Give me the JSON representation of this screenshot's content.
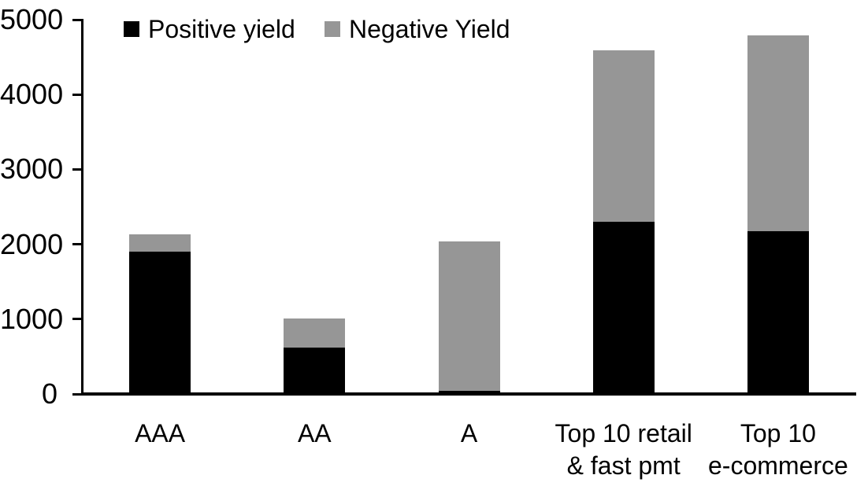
{
  "chart_data": {
    "type": "bar",
    "stacked": true,
    "title": "",
    "xlabel": "",
    "ylabel": "",
    "ylim": [
      0,
      5000
    ],
    "yticks": [
      0,
      1000,
      2000,
      3000,
      4000,
      5000
    ],
    "grid": false,
    "legend_position": "top-left",
    "background_color": "#ffffff",
    "axis_color": "#000000",
    "categories": [
      "AAA",
      "AA",
      "A",
      "Top 10 retail & fast pmt",
      "Top 10 e-commerce"
    ],
    "category_lines": [
      [
        "AAA"
      ],
      [
        "AA"
      ],
      [
        "A"
      ],
      [
        "Top 10 retail",
        "& fast pmt"
      ],
      [
        "Top 10",
        "e-commerce"
      ]
    ],
    "series": [
      {
        "name": "Positive yield",
        "color": "#000000",
        "values": [
          1900,
          620,
          40,
          2300,
          2170
        ]
      },
      {
        "name": "Negative Yield",
        "color": "#969696",
        "values": [
          230,
          390,
          2000,
          2290,
          2620
        ]
      }
    ],
    "totals": [
      2130,
      1010,
      2040,
      4590,
      4790
    ]
  }
}
